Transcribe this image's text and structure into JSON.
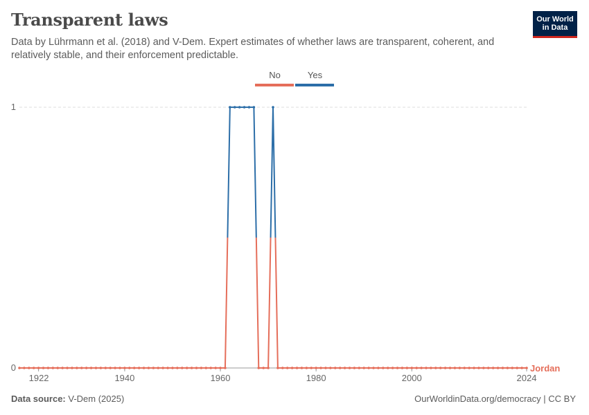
{
  "header": {
    "title": "Transparent laws",
    "subtitle": "Data by Lührmann et al. (2018) and V-Dem. Expert estimates of whether laws are transparent, coherent, and relatively stable, and their enforcement predictable.",
    "logo_line1": "Our World",
    "logo_line2": "in Data"
  },
  "footer": {
    "source_label": "Data source:",
    "source_value": "V-Dem (2025)",
    "credit": "OurWorldinData.org/democracy | CC BY"
  },
  "colors": {
    "no": "#e56e5a",
    "yes": "#2c6ea8",
    "grid": "#dddddd",
    "axis": "#999999"
  },
  "chart_data": {
    "type": "line",
    "title": "Transparent laws",
    "entity": "Jordan",
    "legend": [
      {
        "label": "No",
        "value": 0
      },
      {
        "label": "Yes",
        "value": 1
      }
    ],
    "legend_position": "top-center",
    "xlim": [
      1918,
      2024
    ],
    "ylim": [
      0,
      1
    ],
    "x_ticks": [
      1922,
      1940,
      1960,
      1980,
      2000,
      2024
    ],
    "y_ticks": [
      0,
      1
    ],
    "x": [
      1918,
      1919,
      1920,
      1921,
      1922,
      1923,
      1924,
      1925,
      1926,
      1927,
      1928,
      1929,
      1930,
      1931,
      1932,
      1933,
      1934,
      1935,
      1936,
      1937,
      1938,
      1939,
      1940,
      1941,
      1942,
      1943,
      1944,
      1945,
      1946,
      1947,
      1948,
      1949,
      1950,
      1951,
      1952,
      1953,
      1954,
      1955,
      1956,
      1957,
      1958,
      1959,
      1960,
      1961,
      1962,
      1963,
      1964,
      1965,
      1966,
      1967,
      1968,
      1969,
      1970,
      1971,
      1972,
      1973,
      1974,
      1975,
      1976,
      1977,
      1978,
      1979,
      1980,
      1981,
      1982,
      1983,
      1984,
      1985,
      1986,
      1987,
      1988,
      1989,
      1990,
      1991,
      1992,
      1993,
      1994,
      1995,
      1996,
      1997,
      1998,
      1999,
      2000,
      2001,
      2002,
      2003,
      2004,
      2005,
      2006,
      2007,
      2008,
      2009,
      2010,
      2011,
      2012,
      2013,
      2014,
      2015,
      2016,
      2017,
      2018,
      2019,
      2020,
      2021,
      2022,
      2023,
      2024
    ],
    "y": [
      0,
      0,
      0,
      0,
      0,
      0,
      0,
      0,
      0,
      0,
      0,
      0,
      0,
      0,
      0,
      0,
      0,
      0,
      0,
      0,
      0,
      0,
      0,
      0,
      0,
      0,
      0,
      0,
      0,
      0,
      0,
      0,
      0,
      0,
      0,
      0,
      0,
      0,
      0,
      0,
      0,
      0,
      0,
      0,
      1,
      1,
      1,
      1,
      1,
      1,
      0,
      0,
      0,
      1,
      0,
      0,
      0,
      0,
      0,
      0,
      0,
      0,
      0,
      0,
      0,
      0,
      0,
      0,
      0,
      0,
      0,
      0,
      0,
      0,
      0,
      0,
      0,
      0,
      0,
      0,
      0,
      0,
      0,
      0,
      0,
      0,
      0,
      0,
      0,
      0,
      0,
      0,
      0,
      0,
      0,
      0,
      0,
      0,
      0,
      0,
      0,
      0,
      0,
      0,
      0,
      0,
      0
    ]
  }
}
